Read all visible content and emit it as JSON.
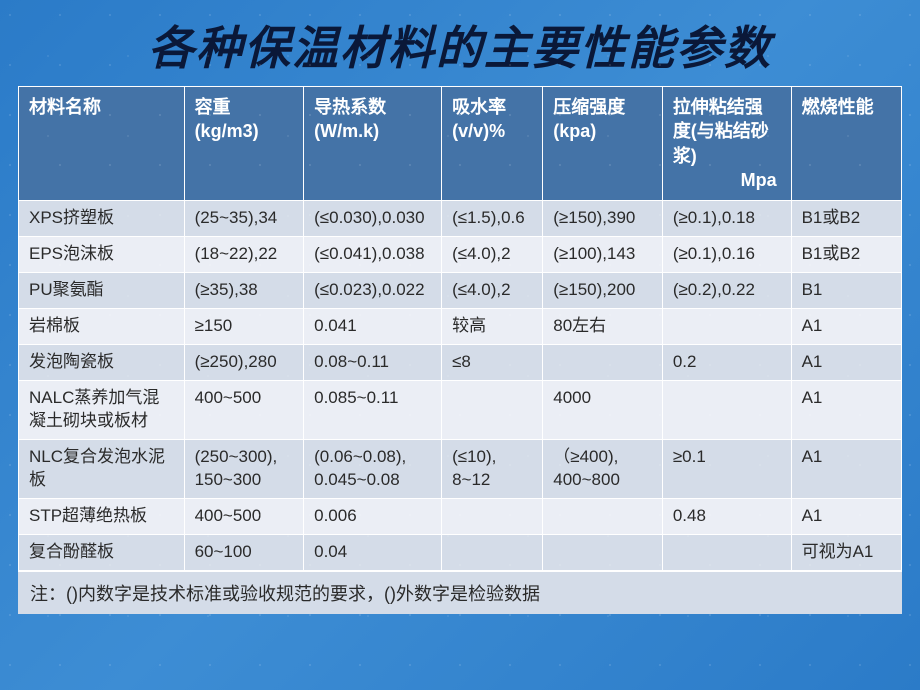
{
  "title": "各种保温材料的主要性能参数",
  "columns": [
    "材料名称",
    "容重\n(kg/m3)",
    "导热系数\n(W/m.k)",
    "吸水率\n(v/v)%",
    "压缩强度\n(kpa)",
    "拉伸粘结强度(与粘结砂浆)",
    "燃烧性能"
  ],
  "mpa_label": "Mpa",
  "rows": [
    [
      "XPS挤塑板",
      "(25~35),34",
      "(≤0.030),0.030",
      "(≤1.5),0.6",
      "(≥150),390",
      "(≥0.1),0.18",
      "B1或B2"
    ],
    [
      "EPS泡沫板",
      "(18~22),22",
      "(≤0.041),0.038",
      "(≤4.0),2",
      "(≥100),143",
      "(≥0.1),0.16",
      "B1或B2"
    ],
    [
      "PU聚氨酯",
      "(≥35),38",
      "(≤0.023),0.022",
      "(≤4.0),2",
      "(≥150),200",
      "(≥0.2),0.22",
      "B1"
    ],
    [
      "岩棉板",
      "≥150",
      "0.041",
      "较高",
      "80左右",
      "",
      "A1"
    ],
    [
      "发泡陶瓷板",
      "(≥250),280",
      "0.08~0.11",
      "≤8",
      "",
      "0.2",
      "A1"
    ],
    [
      "NALC蒸养加气混凝土砌块或板材",
      "400~500",
      "0.085~0.11",
      "",
      "4000",
      "",
      "A1"
    ],
    [
      "NLC复合发泡水泥板",
      "(250~300), 150~300",
      "(0.06~0.08), 0.045~0.08",
      "(≤10), 8~12",
      "（≥400), 400~800",
      "≥0.1",
      "A1"
    ],
    [
      "STP超薄绝热板",
      "400~500",
      "0.006",
      "",
      "",
      "0.48",
      "A1"
    ],
    [
      "复合酚醛板",
      "60~100",
      "0.04",
      "",
      "",
      "",
      "可视为A1"
    ]
  ],
  "footnote": "注：()内数字是技术标准或验收规范的要求，()外数字是检验数据",
  "colors": {
    "header_bg": "#4473a7",
    "row_odd_bg": "#d4dce8",
    "row_even_bg": "#ebeef5",
    "page_bg": "#2b7bc8",
    "title_color": "#0a1838"
  }
}
